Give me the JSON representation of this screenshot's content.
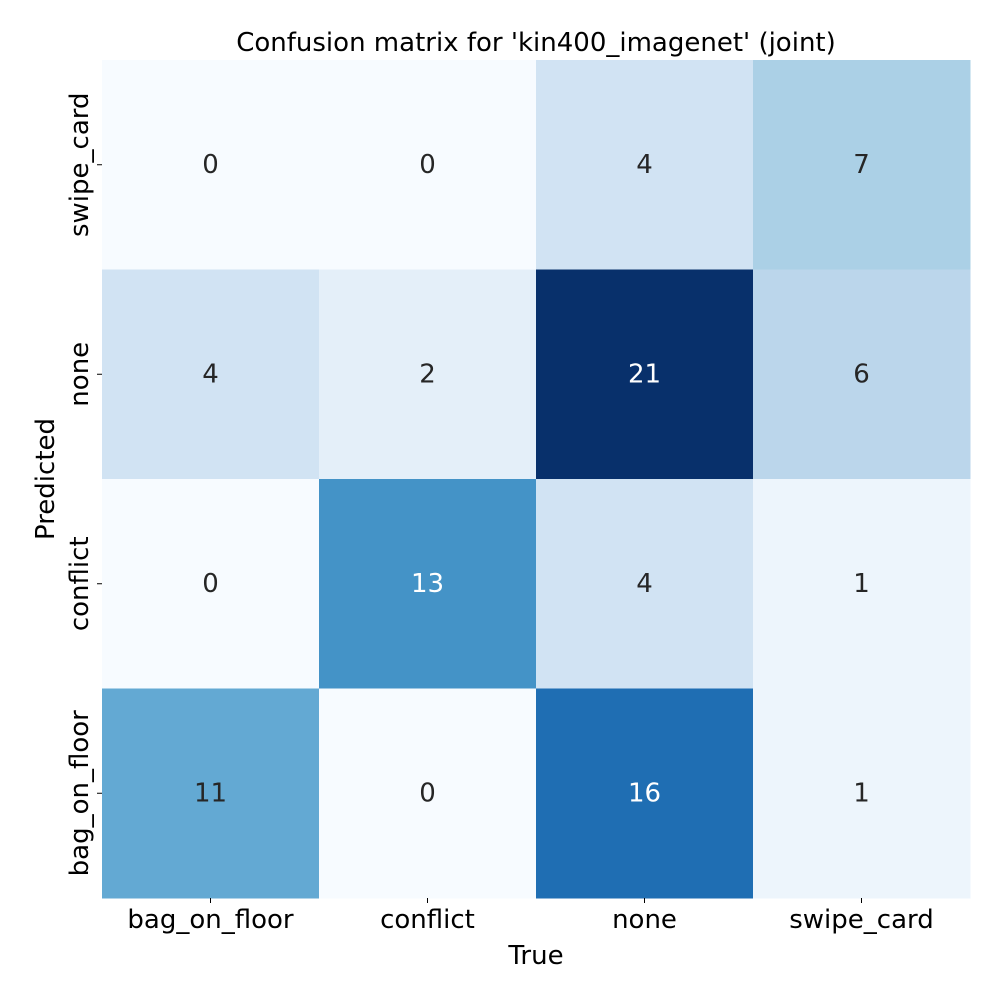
{
  "chart_data": {
    "type": "heatmap",
    "title": "Confusion matrix for 'kin400_imagenet' (joint)",
    "xlabel": "True",
    "ylabel": "Predicted",
    "x_categories": [
      "bag_on_floor",
      "conflict",
      "none",
      "swipe_card"
    ],
    "y_categories": [
      "swipe_card",
      "none",
      "conflict",
      "bag_on_floor"
    ],
    "values": [
      [
        0,
        0,
        4,
        7
      ],
      [
        4,
        2,
        21,
        6
      ],
      [
        0,
        13,
        4,
        1
      ],
      [
        11,
        0,
        16,
        1
      ]
    ],
    "colormap": "Blues",
    "value_range": [
      0,
      21
    ],
    "colorbar": false,
    "grid": false
  }
}
